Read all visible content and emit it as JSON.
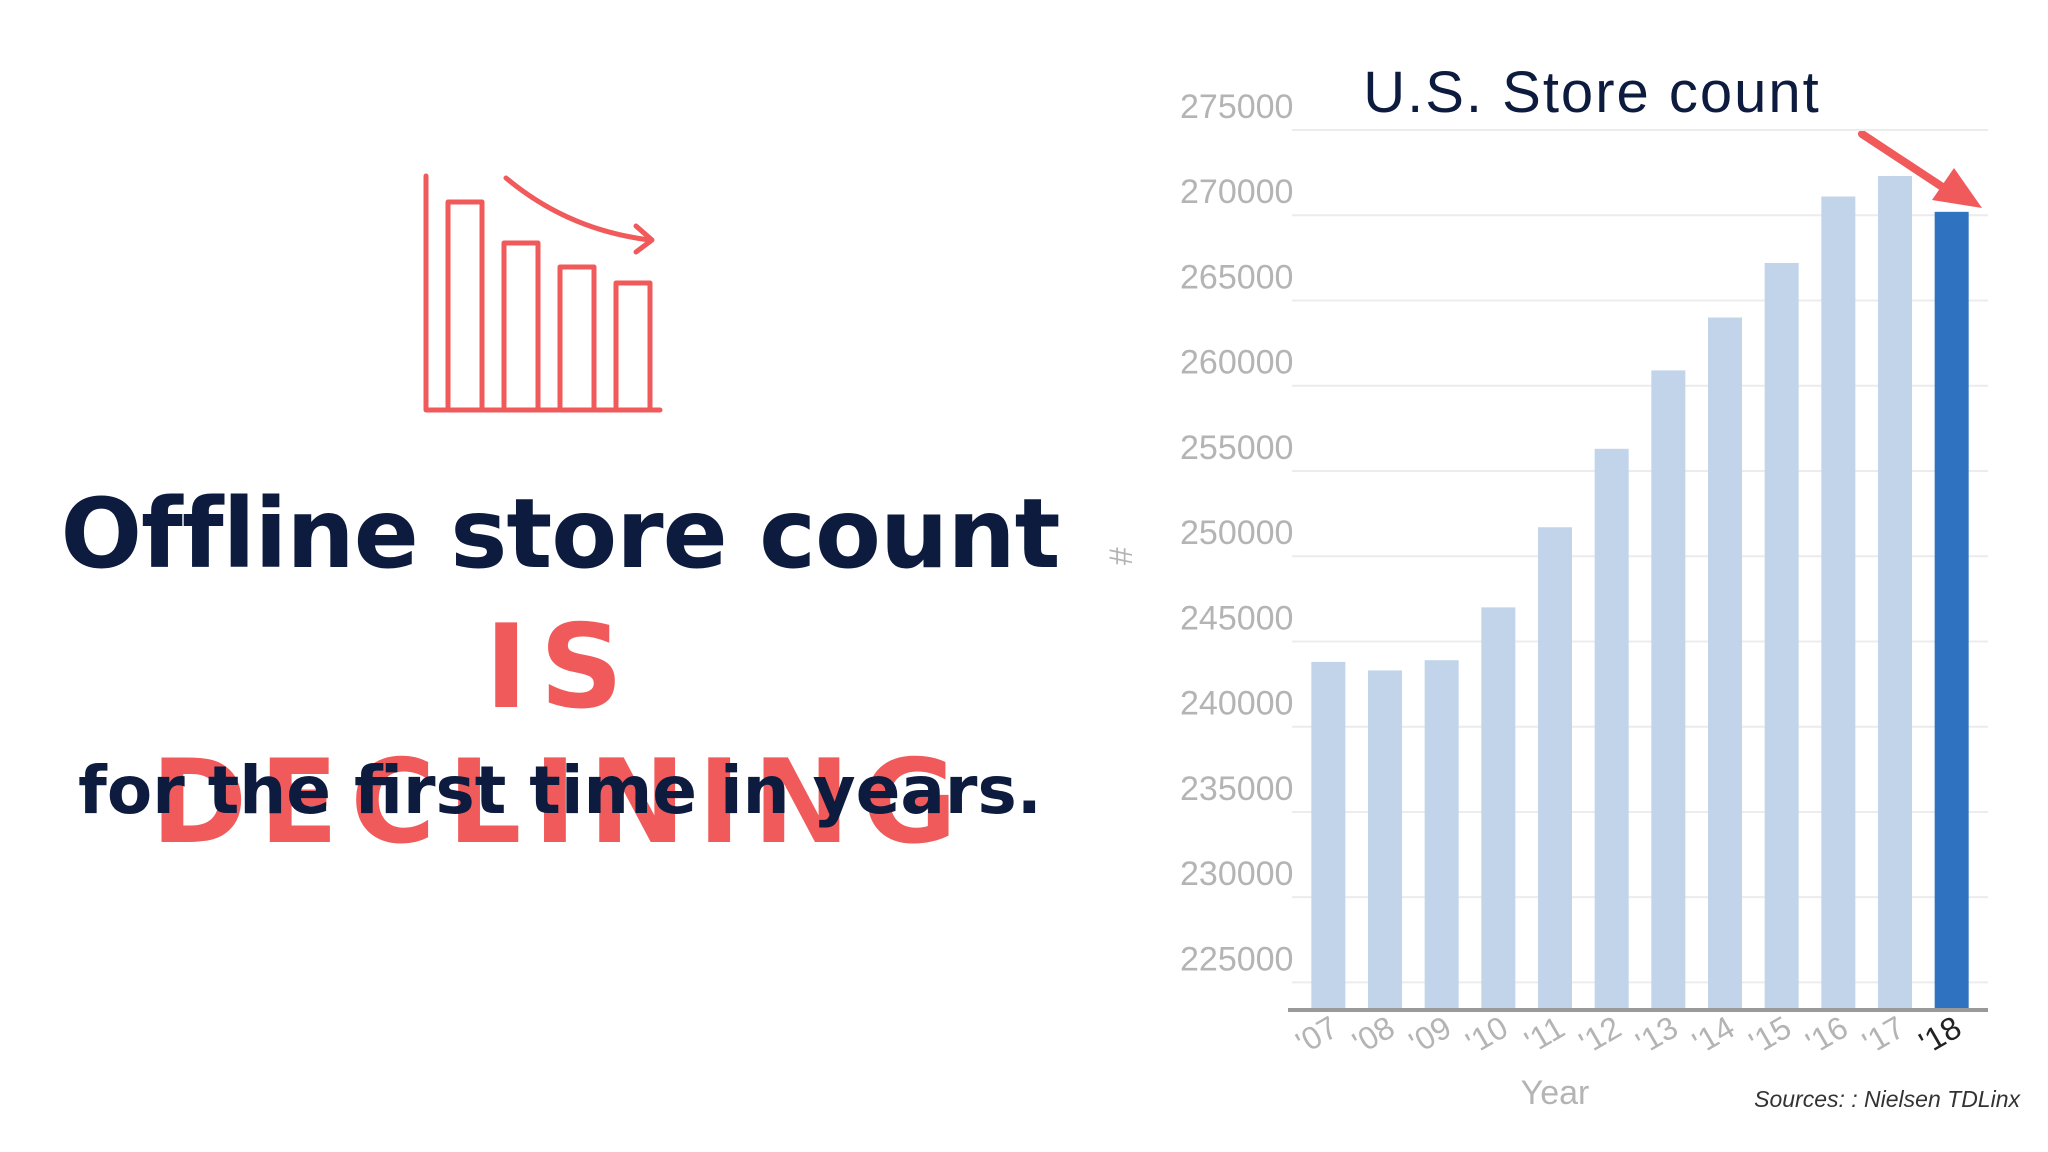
{
  "headline": {
    "line1": "Offline store count",
    "line2": "IS DECLINING",
    "line3": "for the first time in years."
  },
  "icon": {
    "name": "declining-bar-chart-icon",
    "color": "#f05a5a"
  },
  "colors": {
    "navy": "#0d1b3e",
    "accent_red": "#f05a5a",
    "bar_light": "#c2d4ea",
    "bar_highlight": "#2f72c0",
    "axis_text": "#b4b4b4"
  },
  "sources": "Sources: : Nielsen TDLinx",
  "chart_data": {
    "type": "bar",
    "title": "U.S. Store count",
    "xlabel": "Year",
    "ylabel": "#",
    "categories": [
      "'07",
      "'08",
      "'09",
      "'10",
      "'11",
      "'12",
      "'13",
      "'14",
      "'15",
      "'16",
      "'17",
      "'18"
    ],
    "values": [
      243800,
      243300,
      243900,
      247000,
      251700,
      256300,
      260900,
      264000,
      267200,
      271100,
      272300,
      270200
    ],
    "highlight_index": 11,
    "ylim": [
      223500,
      275000
    ],
    "yticks": [
      225000,
      230000,
      235000,
      240000,
      245000,
      250000,
      255000,
      260000,
      265000,
      270000,
      275000
    ],
    "grid": true,
    "annotation": "arrow pointing down at the last bar"
  }
}
